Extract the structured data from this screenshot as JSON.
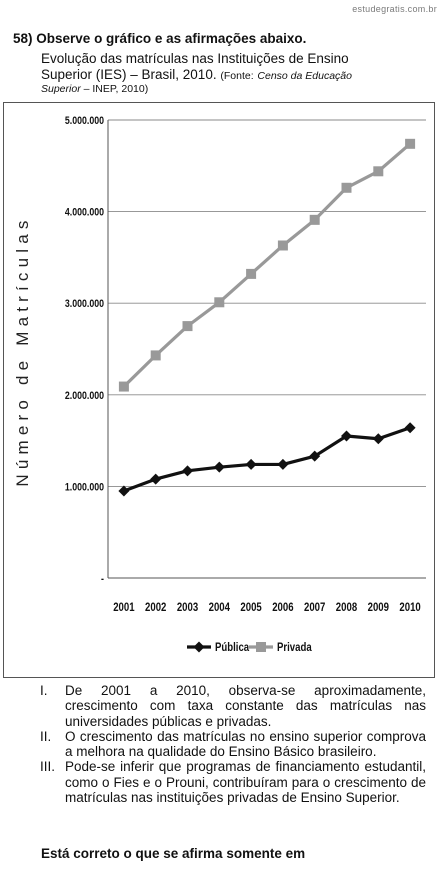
{
  "watermark": "estudegratis.com.br",
  "question": {
    "number": "58)",
    "title": "Observe o gráfico e as afirmações abaixo.",
    "subtitle_line1": "Evolução das matrículas nas Instituições de Ensino",
    "subtitle_line2": "Superior (IES) – Brasil, 2010.",
    "source_label": "(Fonte:",
    "source_italic_1": "Censo da Educação",
    "source_italic_2": "Superior",
    "source_rest": "– INEP, 2010)"
  },
  "chart_data": {
    "type": "line",
    "ylabel": "Número de Matrículas",
    "xlabel": "",
    "categories": [
      "2001",
      "2002",
      "2003",
      "2004",
      "2005",
      "2006",
      "2007",
      "2008",
      "2009",
      "2010"
    ],
    "ylim": [
      0,
      5000000
    ],
    "yticks": [
      0,
      1000000,
      2000000,
      3000000,
      4000000,
      5000000
    ],
    "ytick_labels": [
      "-",
      "1.000.000",
      "2.000.000",
      "3.000.000",
      "4.000.000",
      "5.000.000"
    ],
    "grid": "horizontal",
    "legend": "bottom",
    "series": [
      {
        "name": "Pública",
        "color": "#111111",
        "marker": "diamond",
        "values": [
          950000,
          1080000,
          1170000,
          1210000,
          1240000,
          1240000,
          1330000,
          1550000,
          1520000,
          1640000
        ]
      },
      {
        "name": "Privada",
        "color": "#999999",
        "marker": "square",
        "values": [
          2090000,
          2430000,
          2750000,
          3010000,
          3320000,
          3630000,
          3910000,
          4260000,
          4440000,
          4740000
        ]
      }
    ]
  },
  "statements": [
    {
      "num": "I.",
      "text": "De 2001 a 2010, observa-se aproximadamente, crescimento com taxa constante das matrículas nas universidades públicas e privadas."
    },
    {
      "num": "II.",
      "text": "O crescimento das matrículas no ensino superior comprova a melhora na qualidade do Ensino Básico brasileiro."
    },
    {
      "num": "III.",
      "text": "Pode-se inferir que programas de financiamento estudantil, como o Fies e o Prouni, contribuíram para o crescimento de matrículas nas instituições privadas de Ensino Superior."
    }
  ],
  "final_prompt": "Está correto o que se afirma somente em"
}
